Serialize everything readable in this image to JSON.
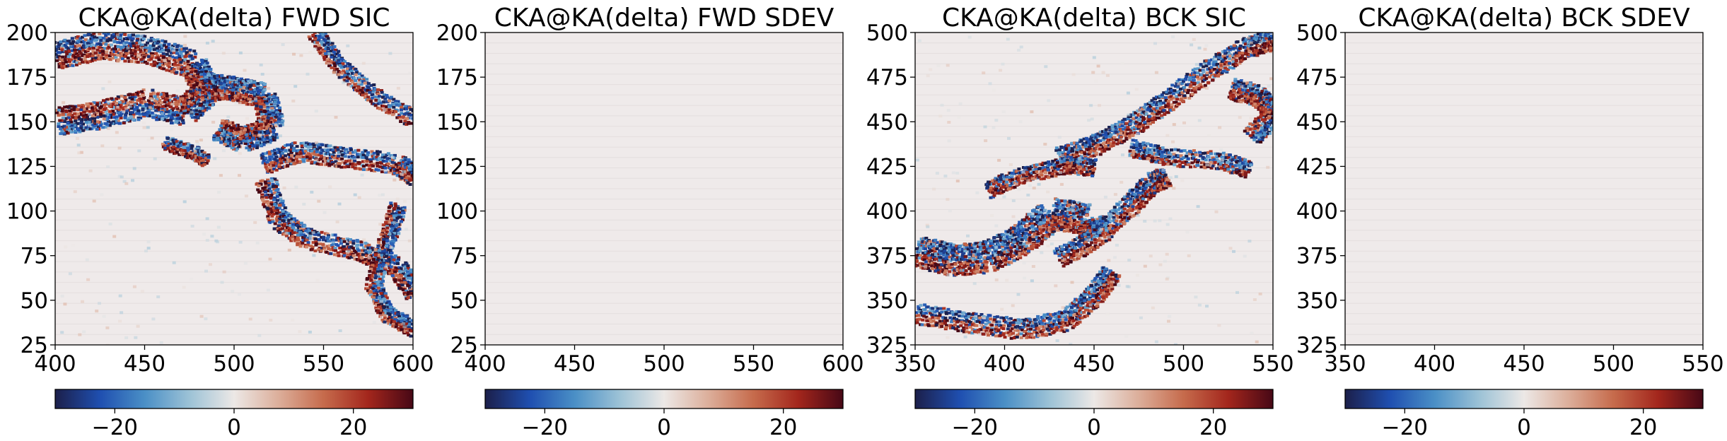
{
  "figure": {
    "panels": [
      {
        "id": "fwd-sic",
        "title": "CKA@KA(delta) FWD SIC"
      },
      {
        "id": "fwd-sdev",
        "title": "CKA@KA(delta) FWD SDEV"
      },
      {
        "id": "bck-sic",
        "title": "CKA@KA(delta) BCK SIC"
      },
      {
        "id": "bck-sdev",
        "title": "CKA@KA(delta) BCK SDEV"
      }
    ]
  },
  "chart_data": [
    {
      "type": "heatmap",
      "title": "CKA@KA(delta) FWD SIC",
      "xlim": [
        400,
        600
      ],
      "ylim": [
        25,
        200
      ],
      "xticks": [
        "400",
        "450",
        "500",
        "550",
        "600"
      ],
      "yticks": [
        "25",
        "50",
        "75",
        "100",
        "125",
        "150",
        "175",
        "200"
      ],
      "colorbar": {
        "vmin": -30,
        "vmax": 30,
        "ticks": [
          "−20",
          "0",
          "20"
        ],
        "colormap": "diverging navy-blue-white-red-maroon"
      },
      "content": "structured"
    },
    {
      "type": "heatmap",
      "title": "CKA@KA(delta) FWD SDEV",
      "xlim": [
        400,
        600
      ],
      "ylim": [
        25,
        200
      ],
      "xticks": [
        "400",
        "450",
        "500",
        "550",
        "600"
      ],
      "yticks": [
        "25",
        "50",
        "75",
        "100",
        "125",
        "150",
        "175",
        "200"
      ],
      "colorbar": {
        "vmin": -30,
        "vmax": 30,
        "ticks": [
          "−20",
          "0",
          "20"
        ],
        "colormap": "diverging navy-blue-white-red-maroon"
      },
      "content": "uniform ~0"
    },
    {
      "type": "heatmap",
      "title": "CKA@KA(delta) BCK SIC",
      "xlim": [
        350,
        550
      ],
      "ylim": [
        325,
        500
      ],
      "xticks": [
        "350",
        "400",
        "450",
        "500",
        "550"
      ],
      "yticks": [
        "325",
        "350",
        "375",
        "400",
        "425",
        "450",
        "475",
        "500"
      ],
      "colorbar": {
        "vmin": -30,
        "vmax": 30,
        "ticks": [
          "−20",
          "0",
          "20"
        ],
        "colormap": "diverging navy-blue-white-red-maroon"
      },
      "content": "structured"
    },
    {
      "type": "heatmap",
      "title": "CKA@KA(delta) BCK SDEV",
      "xlim": [
        350,
        550
      ],
      "ylim": [
        325,
        500
      ],
      "xticks": [
        "350",
        "400",
        "450",
        "500",
        "550"
      ],
      "yticks": [
        "325",
        "350",
        "375",
        "400",
        "425",
        "450",
        "475",
        "500"
      ],
      "colorbar": {
        "vmin": -30,
        "vmax": 30,
        "ticks": [
          "−20",
          "0",
          "20"
        ],
        "colormap": "diverging navy-blue-white-red-maroon"
      },
      "content": "uniform ~0"
    }
  ],
  "colors": {
    "cmap_stops": [
      "#1c1f4a",
      "#1f4fb0",
      "#4a8fc6",
      "#9cc2d6",
      "#ece8e6",
      "#dcae9a",
      "#c66b4c",
      "#a3261c",
      "#470816"
    ],
    "neutral": "#efeaea",
    "outline": "#000000"
  }
}
